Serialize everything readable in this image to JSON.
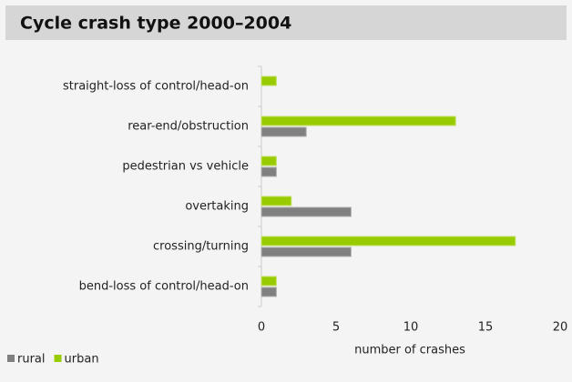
{
  "chart_data": {
    "type": "barh",
    "title": "Cycle crash type 2000–2004",
    "categories": [
      "straight-loss of control/head-on",
      "rear-end/obstruction",
      "pedestrian vs vehicle",
      "overtaking",
      "crossing/turning",
      "bend-loss of control/head-on"
    ],
    "series": [
      {
        "name": "rural",
        "color": "#808080",
        "values": [
          0,
          3,
          1,
          6,
          6,
          1
        ]
      },
      {
        "name": "urban",
        "color": "#99cc00",
        "values": [
          1,
          13,
          1,
          2,
          17,
          1
        ]
      }
    ],
    "xlim": [
      0,
      20
    ],
    "xticks": [
      0,
      5,
      10,
      15,
      20
    ],
    "xlabel": "number of crashes",
    "legend": "bottom-left"
  }
}
